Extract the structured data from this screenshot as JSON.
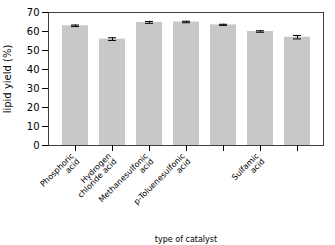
{
  "chart_data": {
    "type": "bar",
    "categories": [
      "Phosphoric\nacid",
      "Hydrogen\nchloride acid",
      "Methanesulfonic\nacid",
      "p-Toluenesulfonic\nacid",
      null,
      "Sulfamic\nacid",
      null
    ],
    "values": [
      63.0,
      56.0,
      64.8,
      65.0,
      63.5,
      60.0,
      57.0
    ],
    "errors": [
      0.4,
      0.7,
      0.5,
      0.4,
      0.3,
      0.4,
      0.9
    ],
    "color": "#c8c8c8",
    "xlabel": "type of catalyst",
    "ylabel": "lipid yield (%)",
    "ylim": [
      0,
      70
    ],
    "yticks": [
      0,
      10,
      20,
      30,
      40,
      50,
      60,
      70
    ],
    "grid": false
  }
}
